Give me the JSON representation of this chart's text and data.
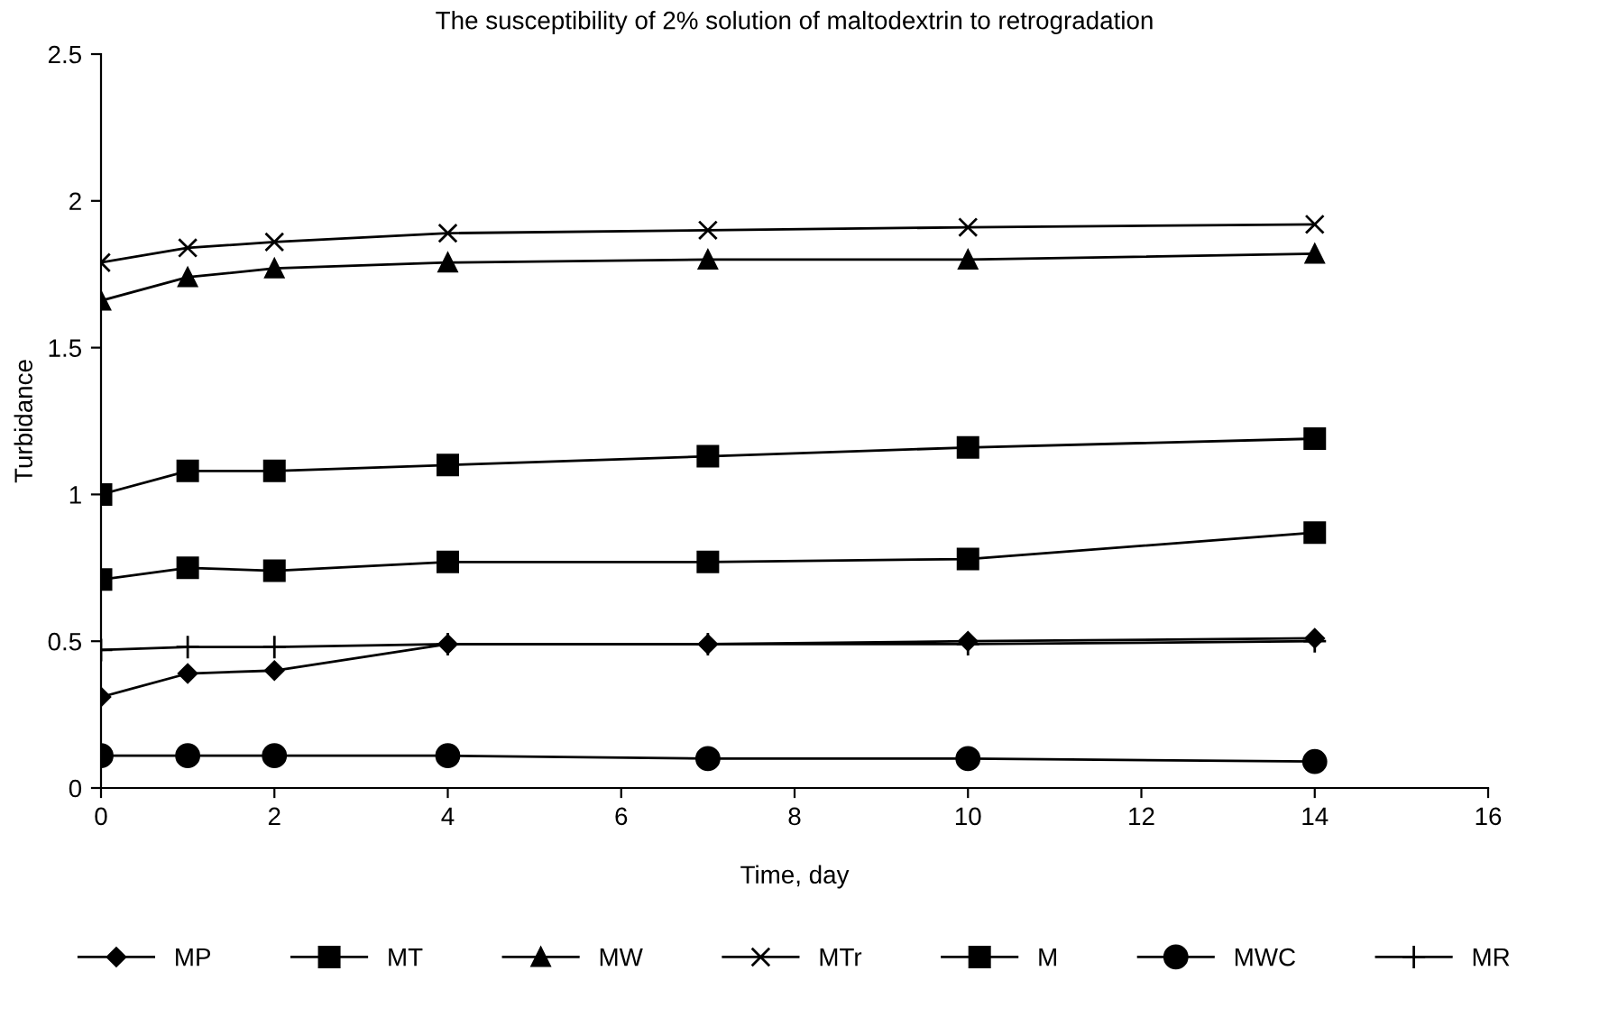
{
  "chart_data": {
    "type": "line",
    "title": "The susceptibility of 2% solution of maltodextrin to retrogradation",
    "xlabel": "Time, day",
    "ylabel": "Turbidance",
    "x": [
      0,
      1,
      2,
      4,
      7,
      10,
      14
    ],
    "series": [
      {
        "name": "MP",
        "color": "#000000",
        "marker": "diamond",
        "values": [
          0.31,
          0.39,
          0.4,
          0.49,
          0.49,
          0.5,
          0.51
        ]
      },
      {
        "name": "MT",
        "color": "#000000",
        "marker": "square",
        "values": [
          1.0,
          1.08,
          1.08,
          1.1,
          1.13,
          1.16,
          1.19
        ]
      },
      {
        "name": "MW",
        "color": "#000000",
        "marker": "triangle",
        "values": [
          1.66,
          1.74,
          1.77,
          1.79,
          1.8,
          1.8,
          1.82
        ]
      },
      {
        "name": "MTr",
        "color": "#000000",
        "marker": "cross",
        "values": [
          1.79,
          1.84,
          1.86,
          1.89,
          1.9,
          1.91,
          1.92
        ]
      },
      {
        "name": "M",
        "color": "#000000",
        "marker": "square",
        "values": [
          0.71,
          0.75,
          0.74,
          0.77,
          0.77,
          0.78,
          0.87
        ]
      },
      {
        "name": "MWC",
        "color": "#000000",
        "marker": "circle",
        "values": [
          0.11,
          0.11,
          0.11,
          0.11,
          0.1,
          0.1,
          0.09
        ]
      },
      {
        "name": "MR",
        "color": "#000000",
        "marker": "plus",
        "values": [
          0.47,
          0.48,
          0.48,
          0.49,
          0.49,
          0.49,
          0.5
        ]
      }
    ],
    "xlim": [
      0,
      16
    ],
    "xticks": [
      0,
      2,
      4,
      6,
      8,
      10,
      12,
      14,
      16
    ],
    "ylim": [
      0,
      2.5
    ],
    "yticks": [
      0,
      0.5,
      1,
      1.5,
      2,
      2.5
    ],
    "grid": false,
    "legend": "bottom",
    "line_style": "solid"
  }
}
